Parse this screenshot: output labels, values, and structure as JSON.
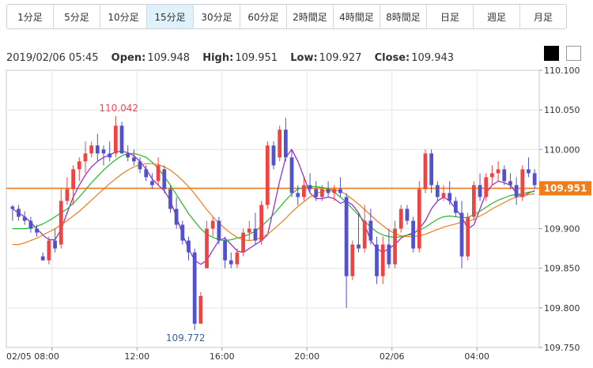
{
  "timeframe_tabs": [
    {
      "label": "1分足"
    },
    {
      "label": "5分足"
    },
    {
      "label": "10分足"
    },
    {
      "label": "15分足",
      "active": true
    },
    {
      "label": "30分足"
    },
    {
      "label": "60分足"
    },
    {
      "label": "2時間足"
    },
    {
      "label": "4時間足"
    },
    {
      "label": "8時間足"
    },
    {
      "label": "日足"
    },
    {
      "label": "週足"
    },
    {
      "label": "月足"
    }
  ],
  "ohlc_info": {
    "datetime": "2019/02/06 05:45",
    "open_label": "Open:",
    "open": "109.948",
    "high_label": "High:",
    "high": "109.951",
    "low_label": "Low:",
    "low": "109.927",
    "close_label": "Close:",
    "close": "109.943"
  },
  "theme_toggles": [
    {
      "color": "#000000"
    },
    {
      "color": "#ffffff"
    }
  ],
  "chart_data": {
    "type": "candlestick",
    "interval": "15分足",
    "ylim": [
      109.75,
      110.1
    ],
    "y_ticks": [
      "110.100",
      "110.050",
      "110.000",
      "109.950",
      "109.900",
      "109.850",
      "109.800",
      "109.750"
    ],
    "x_ticks": [
      {
        "label": "02/05 08:00",
        "index": 6.5
      },
      {
        "label": "12:00",
        "index": 20.5
      },
      {
        "label": "16:00",
        "index": 34.5
      },
      {
        "label": "20:00",
        "index": 48.5
      },
      {
        "label": "02/06",
        "index": 62.5
      },
      {
        "label": "04:00",
        "index": 76.5
      }
    ],
    "current_price": {
      "value": 109.951,
      "label": "109.951",
      "color": "#f07d1a"
    },
    "annotations": [
      {
        "label": "110.042",
        "value": 110.042,
        "index": 17.5,
        "color": "#e84a5f"
      },
      {
        "label": "109.772",
        "value": 109.772,
        "index": 28.5,
        "color": "#3a5fa8"
      }
    ],
    "colors": {
      "up": "#ee4444",
      "down": "#5252cc",
      "ma_short": "#9b1fc9",
      "ma_mid": "#22bb22",
      "ma_long": "#f07d1a"
    },
    "moving_averages": [
      {
        "color": "#9b1fc9",
        "values": [
          109.925,
          109.92,
          109.915,
          109.908,
          109.9,
          109.892,
          109.886,
          109.886,
          109.899,
          109.92,
          109.94,
          109.955,
          109.968,
          109.978,
          109.985,
          109.99,
          109.993,
          109.997,
          109.998,
          109.996,
          109.992,
          109.985,
          109.975,
          109.963,
          109.955,
          109.948,
          109.935,
          109.915,
          109.893,
          109.875,
          109.86,
          109.855,
          109.86,
          109.873,
          109.885,
          109.888,
          109.88,
          109.872,
          109.87,
          109.875,
          109.88,
          109.885,
          109.892,
          109.925,
          109.96,
          109.99,
          110.0,
          109.985,
          109.965,
          109.945,
          109.938,
          109.938,
          109.94,
          109.938,
          109.932,
          109.935,
          109.93,
          109.92,
          109.905,
          109.885,
          109.875,
          109.87,
          109.875,
          109.88,
          109.888,
          109.892,
          109.893,
          109.9,
          109.91,
          109.925,
          109.935,
          109.94,
          109.935,
          109.925,
          109.915,
          109.9,
          109.905,
          109.925,
          109.945,
          109.955,
          109.96,
          109.958,
          109.955,
          109.945,
          109.94,
          109.945,
          109.948
        ]
      },
      {
        "color": "#22bb22",
        "values": [
          109.9,
          109.9,
          109.9,
          109.901,
          109.903,
          109.906,
          109.91,
          109.915,
          109.92,
          109.925,
          109.932,
          109.94,
          109.949,
          109.958,
          109.966,
          109.974,
          109.981,
          109.987,
          109.992,
          109.995,
          109.995,
          109.993,
          109.99,
          109.984,
          109.976,
          109.966,
          109.955,
          109.943,
          109.931,
          109.919,
          109.909,
          109.9,
          109.893,
          109.889,
          109.886,
          109.885,
          109.886,
          109.888,
          109.89,
          109.893,
          109.897,
          109.903,
          109.91,
          109.918,
          109.927,
          109.936,
          109.944,
          109.95,
          109.952,
          109.953,
          109.953,
          109.952,
          109.95,
          109.946,
          109.94,
          109.933,
          109.925,
          109.917,
          109.909,
          109.902,
          109.896,
          109.892,
          109.89,
          109.889,
          109.89,
          109.892,
          109.895,
          109.898,
          109.902,
          109.907,
          109.912,
          109.915,
          109.916,
          109.915,
          109.914,
          109.914,
          109.918,
          109.922,
          109.927,
          109.932,
          109.936,
          109.939,
          109.942,
          109.943,
          109.944,
          109.946,
          109.947
        ]
      },
      {
        "color": "#f07d1a",
        "values": [
          109.88,
          109.88,
          109.882,
          109.885,
          109.888,
          109.892,
          109.896,
          109.9,
          109.905,
          109.91,
          109.916,
          109.922,
          109.929,
          109.936,
          109.943,
          109.95,
          109.957,
          109.963,
          109.969,
          109.974,
          109.978,
          109.981,
          109.982,
          109.982,
          109.981,
          109.978,
          109.974,
          109.968,
          109.961,
          109.953,
          109.944,
          109.934,
          109.924,
          109.915,
          109.907,
          109.9,
          109.894,
          109.889,
          109.886,
          109.885,
          109.886,
          109.889,
          109.893,
          109.899,
          109.906,
          109.913,
          109.921,
          109.928,
          109.934,
          109.94,
          109.944,
          109.947,
          109.949,
          109.949,
          109.947,
          109.943,
          109.937,
          109.931,
          109.924,
          109.917,
          109.91,
          109.904,
          109.898,
          109.894,
          109.891,
          109.89,
          109.89,
          109.891,
          109.893,
          109.896,
          109.899,
          109.902,
          109.904,
          109.906,
          109.908,
          109.909,
          109.912,
          109.916,
          109.92,
          109.925,
          109.929,
          109.933,
          109.937,
          109.94,
          109.941,
          109.943,
          109.944
        ]
      }
    ],
    "candles": [
      [
        109.928,
        109.93,
        109.91,
        109.925
      ],
      [
        109.925,
        109.93,
        109.91,
        109.915
      ],
      [
        109.915,
        109.922,
        109.905,
        109.91
      ],
      [
        109.91,
        109.915,
        109.895,
        109.9
      ],
      [
        109.9,
        109.905,
        109.89,
        109.895
      ],
      [
        109.865,
        109.87,
        109.86,
        109.86
      ],
      [
        109.86,
        109.89,
        109.855,
        109.885
      ],
      [
        109.885,
        109.9,
        109.87,
        109.875
      ],
      [
        109.88,
        109.95,
        109.875,
        109.935
      ],
      [
        109.935,
        109.965,
        109.93,
        109.95
      ],
      [
        109.95,
        109.98,
        109.93,
        109.975
      ],
      [
        109.975,
        109.99,
        109.96,
        109.985
      ],
      [
        109.985,
        110.01,
        109.97,
        109.995
      ],
      [
        109.995,
        110.01,
        109.99,
        110.005
      ],
      [
        110.005,
        110.02,
        109.985,
        109.995
      ],
      [
        110.0,
        110.005,
        109.98,
        109.995
      ],
      [
        109.995,
        110.01,
        109.985,
        109.99
      ],
      [
        109.995,
        110.042,
        109.99,
        110.03
      ],
      [
        110.03,
        110.035,
        109.995,
        109.995
      ],
      [
        109.995,
        110.005,
        109.985,
        109.99
      ],
      [
        109.99,
        110.0,
        109.98,
        109.985
      ],
      [
        109.985,
        109.99,
        109.97,
        109.975
      ],
      [
        109.975,
        109.98,
        109.96,
        109.965
      ],
      [
        109.96,
        109.97,
        109.95,
        109.955
      ],
      [
        109.96,
        109.99,
        109.955,
        109.98
      ],
      [
        109.975,
        109.98,
        109.945,
        109.95
      ],
      [
        109.95,
        109.955,
        109.92,
        109.925
      ],
      [
        109.925,
        109.94,
        109.9,
        109.905
      ],
      [
        109.905,
        109.91,
        109.88,
        109.885
      ],
      [
        109.885,
        109.89,
        109.86,
        109.87
      ],
      [
        109.87,
        109.875,
        109.772,
        109.78
      ],
      [
        109.78,
        109.82,
        109.78,
        109.815
      ],
      [
        109.85,
        109.91,
        109.85,
        109.9
      ],
      [
        109.9,
        109.915,
        109.89,
        109.91
      ],
      [
        109.91,
        109.915,
        109.88,
        109.885
      ],
      [
        109.885,
        109.89,
        109.85,
        109.86
      ],
      [
        109.86,
        109.87,
        109.85,
        109.855
      ],
      [
        109.855,
        109.875,
        109.85,
        109.87
      ],
      [
        109.87,
        109.9,
        109.865,
        109.895
      ],
      [
        109.895,
        109.91,
        109.885,
        109.9
      ],
      [
        109.9,
        109.92,
        109.88,
        109.885
      ],
      [
        109.885,
        109.935,
        109.88,
        109.93
      ],
      [
        109.93,
        110.01,
        109.925,
        110.005
      ],
      [
        110.005,
        110.01,
        109.975,
        109.98
      ],
      [
        109.99,
        110.03,
        109.985,
        110.025
      ],
      [
        110.025,
        110.04,
        109.985,
        109.99
      ],
      [
        109.99,
        110.0,
        109.94,
        109.945
      ],
      [
        109.945,
        109.955,
        109.93,
        109.94
      ],
      [
        109.94,
        109.965,
        109.935,
        109.955
      ],
      [
        109.955,
        109.97,
        109.945,
        109.95
      ],
      [
        109.95,
        109.96,
        109.935,
        109.94
      ],
      [
        109.94,
        109.955,
        109.935,
        109.95
      ],
      [
        109.95,
        109.96,
        109.94,
        109.945
      ],
      [
        109.945,
        109.955,
        109.935,
        109.95
      ],
      [
        109.95,
        109.965,
        109.94,
        109.945
      ],
      [
        109.94,
        109.945,
        109.8,
        109.84
      ],
      [
        109.84,
        109.885,
        109.835,
        109.88
      ],
      [
        109.88,
        109.92,
        109.87,
        109.875
      ],
      [
        109.875,
        109.93,
        109.87,
        109.91
      ],
      [
        109.91,
        109.925,
        109.88,
        109.885
      ],
      [
        109.88,
        109.89,
        109.83,
        109.84
      ],
      [
        109.84,
        109.89,
        109.83,
        109.88
      ],
      [
        109.88,
        109.9,
        109.85,
        109.855
      ],
      [
        109.855,
        109.91,
        109.85,
        109.9
      ],
      [
        109.9,
        109.93,
        109.895,
        109.925
      ],
      [
        109.925,
        109.93,
        109.905,
        109.91
      ],
      [
        109.91,
        109.915,
        109.87,
        109.875
      ],
      [
        109.875,
        109.96,
        109.87,
        109.95
      ],
      [
        109.95,
        110.0,
        109.945,
        109.995
      ],
      [
        109.995,
        110.0,
        109.945,
        109.955
      ],
      [
        109.955,
        109.96,
        109.935,
        109.94
      ],
      [
        109.94,
        109.955,
        109.935,
        109.945
      ],
      [
        109.945,
        109.96,
        109.93,
        109.935
      ],
      [
        109.935,
        109.94,
        109.915,
        109.92
      ],
      [
        109.92,
        109.935,
        109.85,
        109.865
      ],
      [
        109.865,
        109.92,
        109.86,
        109.915
      ],
      [
        109.915,
        109.96,
        109.91,
        109.955
      ],
      [
        109.955,
        109.97,
        109.935,
        109.94
      ],
      [
        109.94,
        109.97,
        109.935,
        109.965
      ],
      [
        109.965,
        109.98,
        109.955,
        109.97
      ],
      [
        109.97,
        109.985,
        109.96,
        109.975
      ],
      [
        109.975,
        109.98,
        109.955,
        109.96
      ],
      [
        109.96,
        109.97,
        109.95,
        109.955
      ],
      [
        109.955,
        109.965,
        109.93,
        109.94
      ],
      [
        109.94,
        109.98,
        109.935,
        109.975
      ],
      [
        109.975,
        109.99,
        109.965,
        109.97
      ],
      [
        109.97,
        109.975,
        109.95,
        109.955
      ]
    ]
  }
}
